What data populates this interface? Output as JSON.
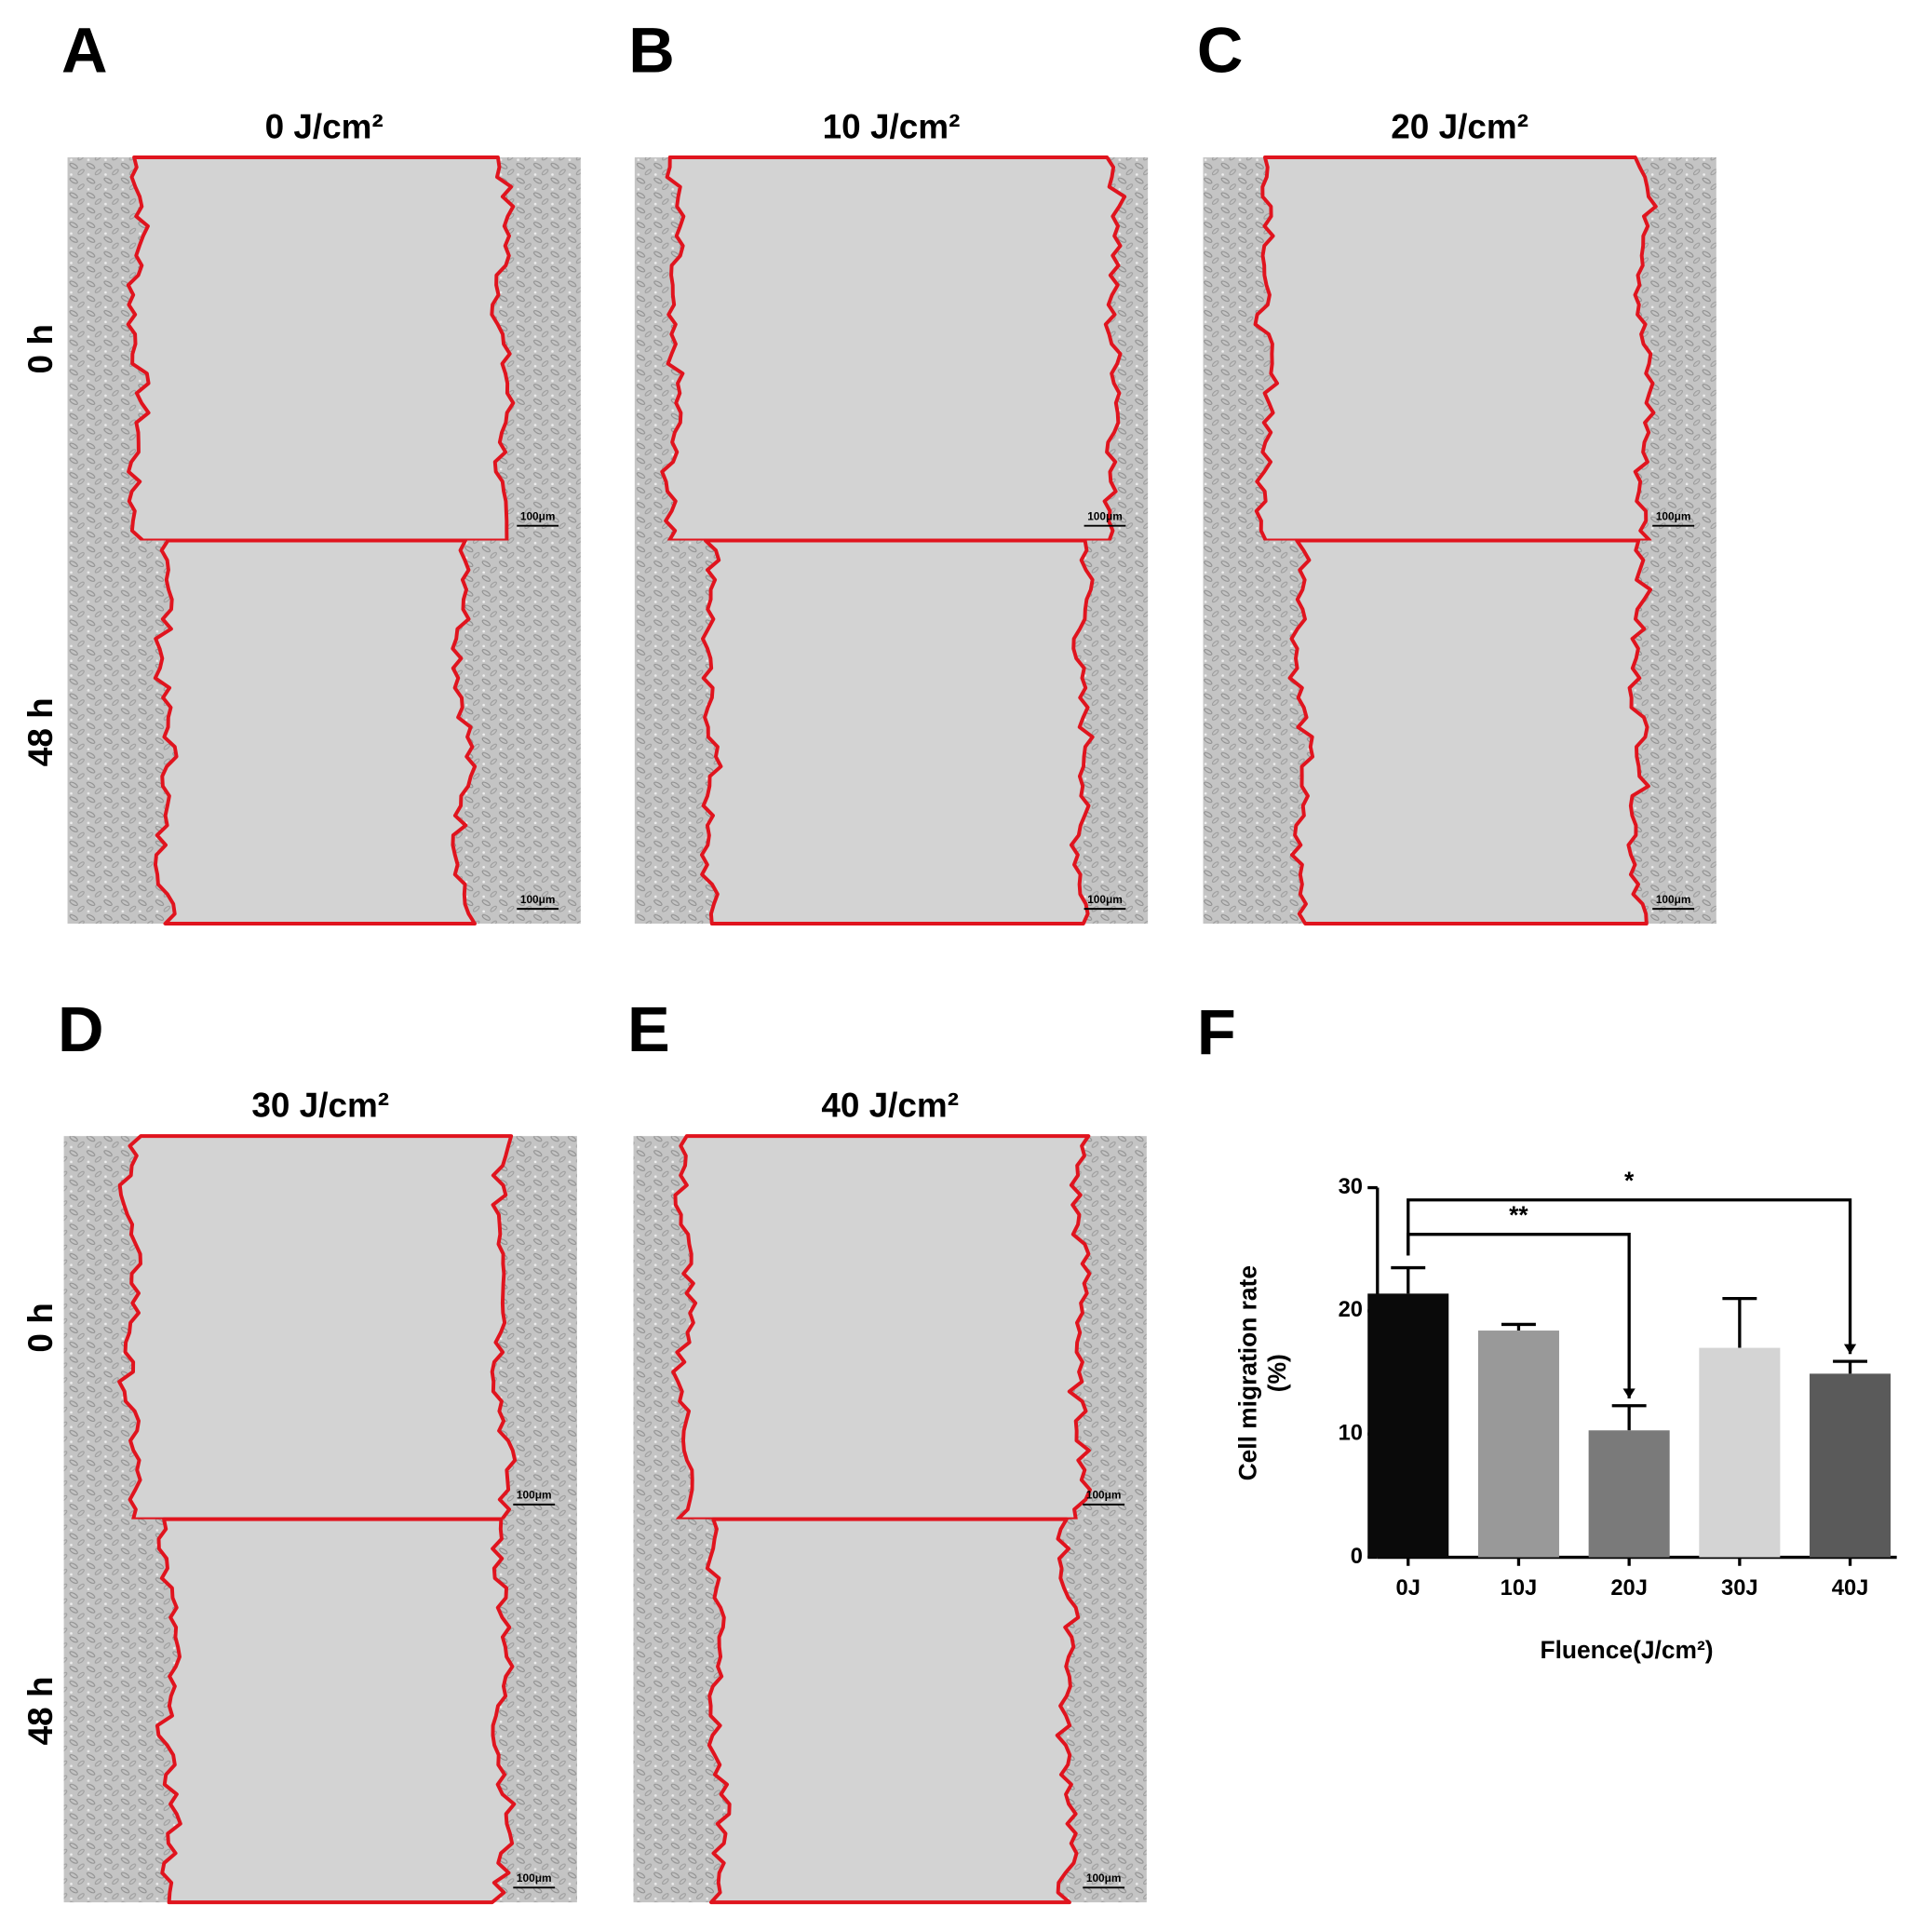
{
  "panels": [
    {
      "letter": "A",
      "title": "0 J/cm²"
    },
    {
      "letter": "B",
      "title": "10 J/cm²"
    },
    {
      "letter": "C",
      "title": "20 J/cm²"
    },
    {
      "letter": "D",
      "title": "30 J/cm²"
    },
    {
      "letter": "E",
      "title": "40 J/cm²"
    }
  ],
  "row_labels": [
    "0 h",
    "48 h"
  ],
  "scale_bar": "100μm",
  "chart_letter": "F",
  "chart_data": {
    "type": "bar",
    "ylabel": [
      "Cell migration rate",
      "(%)"
    ],
    "xlabel": "Fluence(J/cm²)",
    "categories": [
      "0J",
      "10J",
      "20J",
      "30J",
      "40J"
    ],
    "values": [
      21.4,
      18.4,
      10.3,
      17.0,
      14.9
    ],
    "errors": [
      2.1,
      0.5,
      2.0,
      4.0,
      1.0
    ],
    "colors": [
      "#0a0a0a",
      "#999999",
      "#7a7a7a",
      "#d4d4d4",
      "#5a5a5a"
    ],
    "ylim": [
      0,
      30
    ],
    "yticks": [
      0,
      10,
      20,
      30
    ],
    "annotations": [
      "**",
      "*"
    ]
  }
}
